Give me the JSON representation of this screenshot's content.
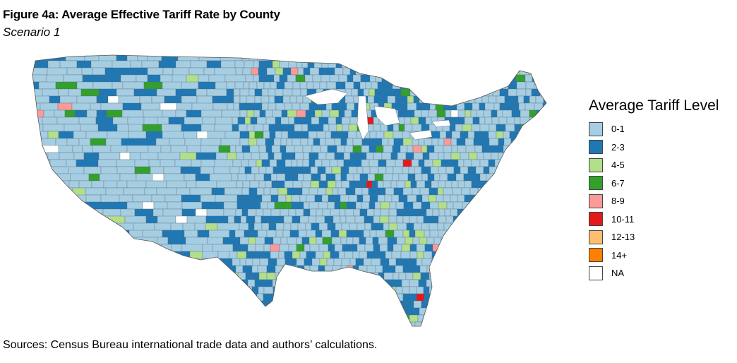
{
  "figure": {
    "title": "Figure 4a: Average Effective Tariff Rate by County",
    "subtitle": "Scenario 1",
    "source": "Sources: Census Bureau international trade data and authors’ calculations."
  },
  "map": {
    "region": "Contiguous United States, by county",
    "legend_title": "Average Tariff Level",
    "legend": [
      {
        "label": "0-1",
        "color": "#a6cee3"
      },
      {
        "label": "2-3",
        "color": "#1f78b4"
      },
      {
        "label": "4-5",
        "color": "#b2df8a"
      },
      {
        "label": "6-7",
        "color": "#33a02c"
      },
      {
        "label": "8-9",
        "color": "#fb9a99"
      },
      {
        "label": "10-11",
        "color": "#e31a1c"
      },
      {
        "label": "12-13",
        "color": "#fdbf6f"
      },
      {
        "label": "14+",
        "color": "#ff7f00"
      },
      {
        "label": "NA",
        "color": "#ffffff"
      }
    ]
  }
}
